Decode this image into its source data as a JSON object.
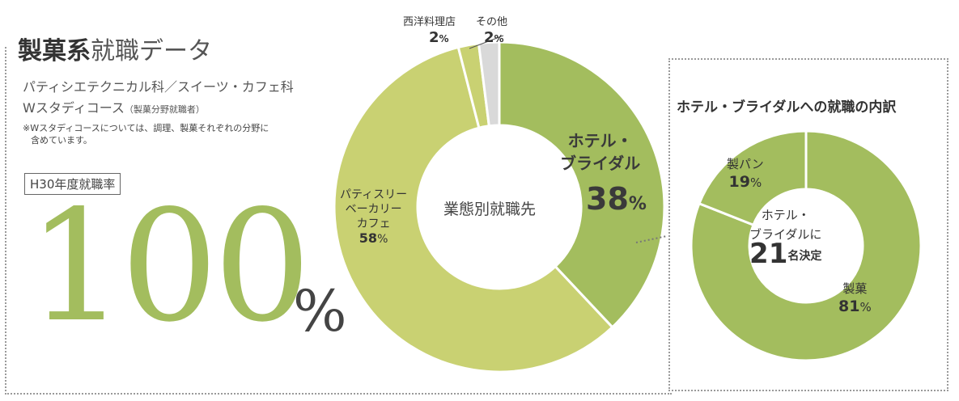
{
  "header": {
    "title_bold": "製菓系",
    "title_light": "就職データ",
    "subtitle1": "パティシエテクニカル科／スイーツ・カフェ科",
    "subtitle2": "Wスタディコース",
    "subtitle2_note": "（製菓分野就職者）",
    "note_line1": "※Wスタディコースについては、調理、製菓それぞれの分野に",
    "note_line2": "含めています。"
  },
  "employment_rate": {
    "label": "H30年度就職率",
    "value": "100",
    "unit": "%"
  },
  "colors": {
    "green_dark": "#a3bd5e",
    "green_light": "#c9d172",
    "gray": "#d9d9d9",
    "white": "#ffffff"
  },
  "chart_data": [
    {
      "type": "pie",
      "title": "業態別就職先",
      "slices": [
        {
          "label": "ホテル・ブライダル",
          "value": 38,
          "display_value": "38",
          "color": "#a3bd5e"
        },
        {
          "label": "パティスリーベーカリーカフェ",
          "display_label_lines": [
            "パティスリー",
            "ベーカリー",
            "カフェ"
          ],
          "value": 58,
          "display_value": "58",
          "color": "#c9d172"
        },
        {
          "label": "西洋料理店",
          "value": 2,
          "display_value": "2",
          "color": "#c9d172"
        },
        {
          "label": "その他",
          "value": 2,
          "display_value": "2",
          "color": "#d9d9d9"
        }
      ],
      "unit": "%",
      "label_hotel_line1": "ホテル・",
      "label_hotel_line2": "ブライダル"
    },
    {
      "type": "pie",
      "title": "ホテル・ブライダルへの就職の内訳",
      "center_line1": "ホテル・",
      "center_line2": "ブライダルに",
      "center_number": "21",
      "center_unit": "名決定",
      "slices": [
        {
          "label": "製パン",
          "value": 19,
          "display_value": "19",
          "color": "#a3bd5e"
        },
        {
          "label": "製菓",
          "value": 81,
          "display_value": "81",
          "color": "#a3bd5e"
        }
      ],
      "unit": "%"
    }
  ]
}
